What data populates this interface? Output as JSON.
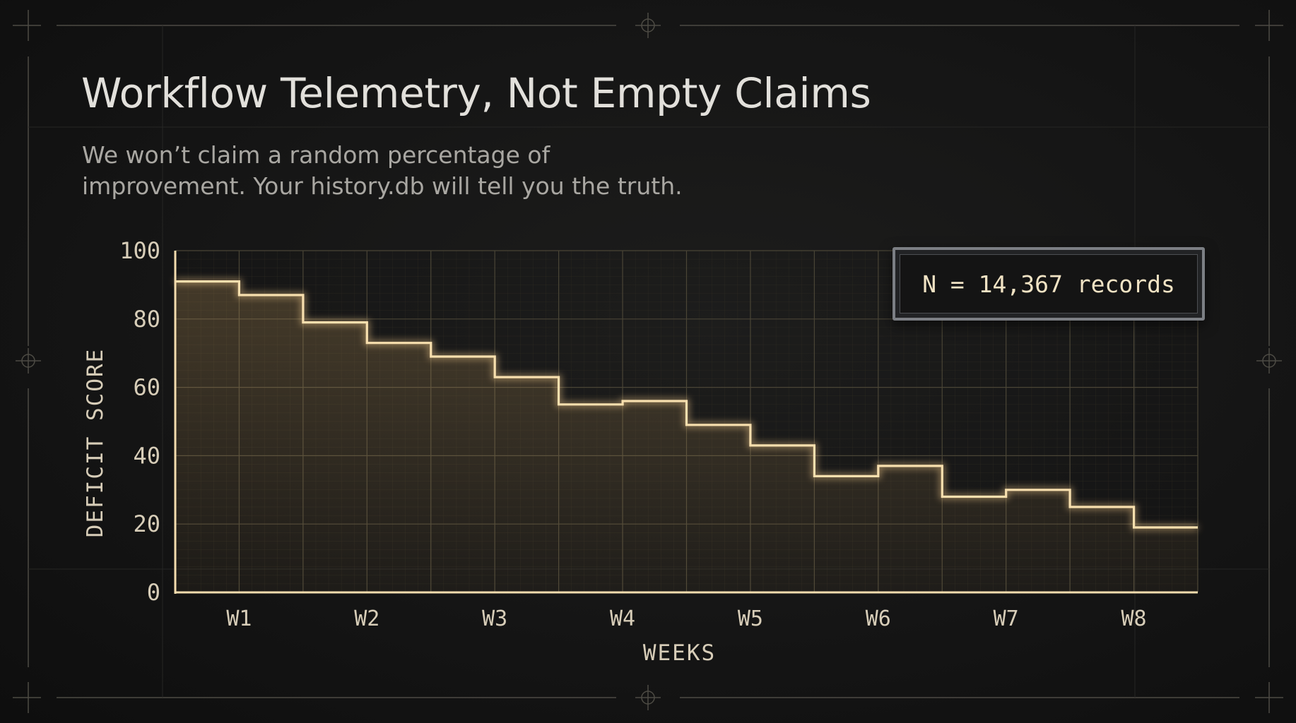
{
  "header": {
    "title": "Workflow Telemetry, Not Empty Claims",
    "subtitle": "We won’t claim a random percentage of improvement. Your history.db will tell you the truth."
  },
  "badge": {
    "text": "N = 14,367 records"
  },
  "colors": {
    "background": "#151515",
    "accent": "#f2c98a",
    "grid": "#4a4536",
    "frame": "#4d4b44",
    "text": "#e2e0db",
    "muted": "#a9a7a2",
    "tick_text": "#d7cdb8"
  },
  "chart_data": {
    "type": "line",
    "style": "step",
    "title": "",
    "xlabel": "WEEKS",
    "ylabel": "DEFICIT SCORE",
    "categories": [
      "W1",
      "W2",
      "W3",
      "W4",
      "W5",
      "W6",
      "W7",
      "W8"
    ],
    "ylim": [
      0,
      100
    ],
    "yticks": [
      0,
      20,
      40,
      60,
      80,
      100
    ],
    "grid": true,
    "series": [
      {
        "x": [
          0.5,
          1.0,
          1.5,
          2.0,
          2.5,
          3.0,
          3.5,
          4.0,
          4.5,
          5.0,
          5.5,
          6.0,
          6.5,
          7.0,
          7.5,
          8.0
        ],
        "values": [
          91,
          87,
          79,
          73,
          69,
          63,
          55,
          56,
          49,
          43,
          34,
          37,
          28,
          30,
          25,
          19
        ]
      }
    ]
  }
}
